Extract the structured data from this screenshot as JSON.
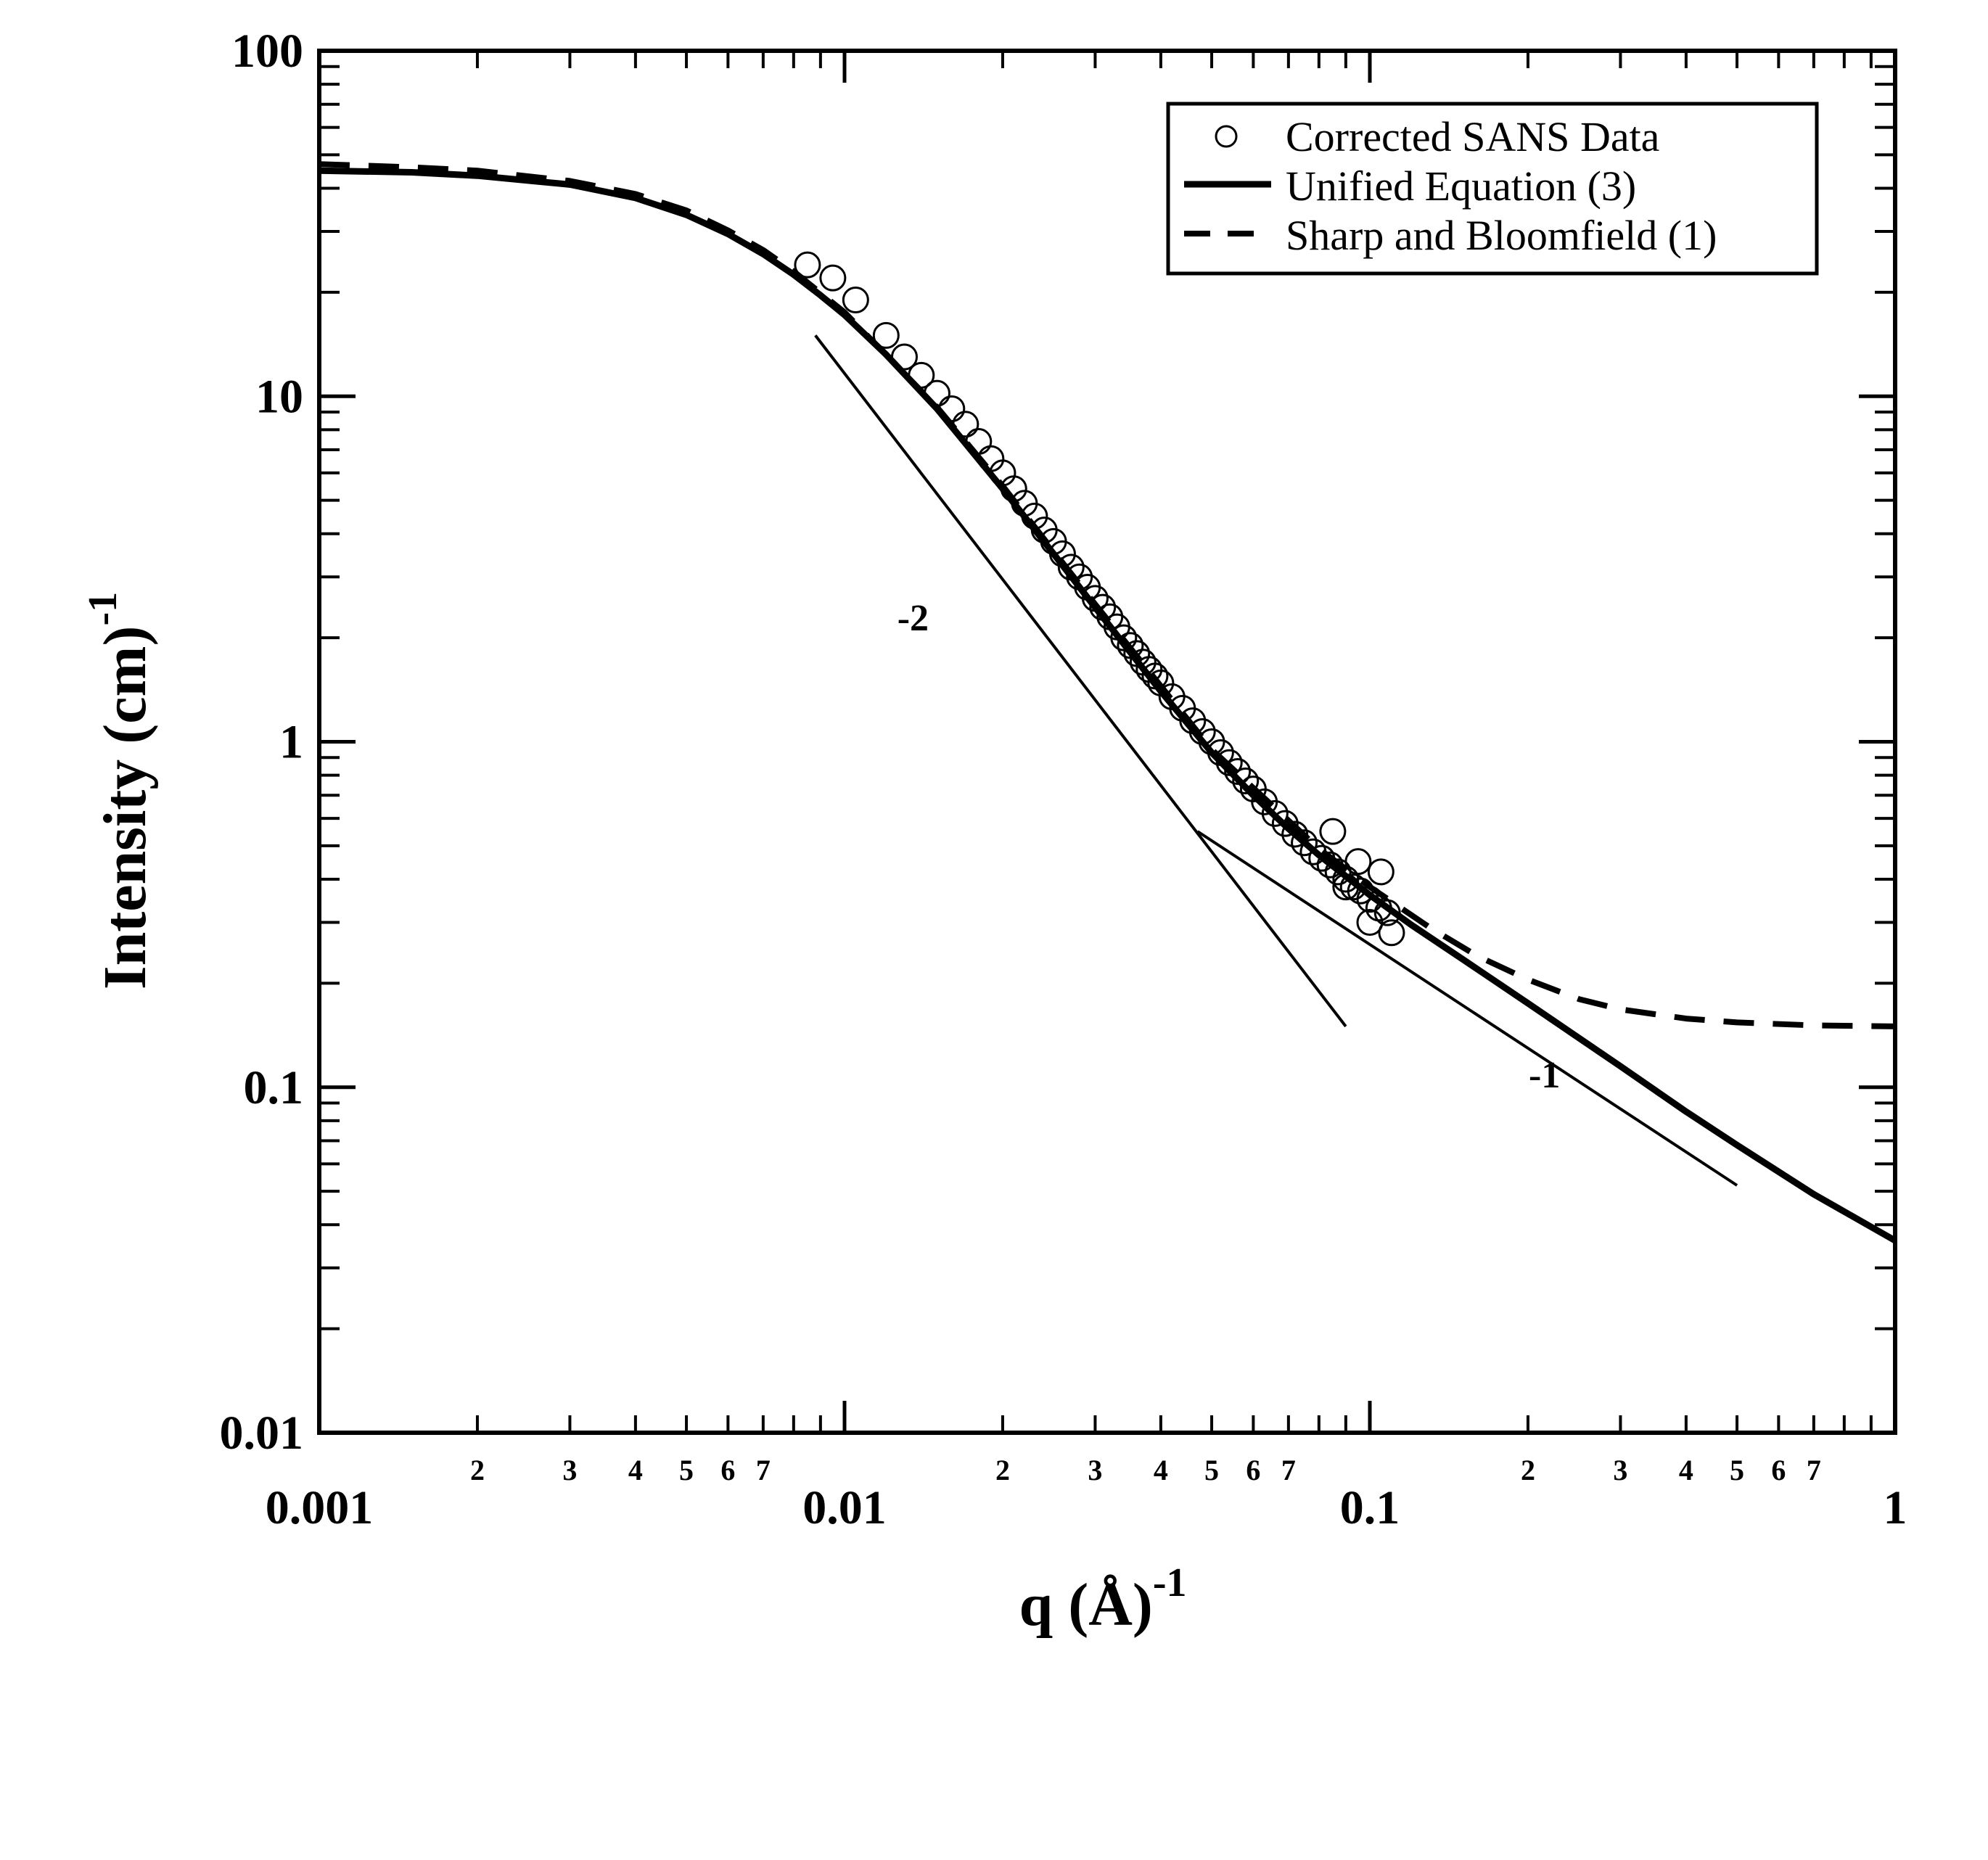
{
  "chart_data": {
    "type": "scatter",
    "title": "",
    "xlabel": "q (Å)",
    "xlabel_exponent": "-1",
    "ylabel": "Intensity (cm)",
    "ylabel_exponent": "-1",
    "xscale": "log",
    "yscale": "log",
    "xlim": [
      0.001,
      1
    ],
    "ylim": [
      0.01,
      100
    ],
    "x_major_ticks": [
      {
        "value": 0.001,
        "label": "0.001"
      },
      {
        "value": 0.01,
        "label": "0.01"
      },
      {
        "value": 0.1,
        "label": "0.1"
      },
      {
        "value": 1,
        "label": "1"
      }
    ],
    "y_major_ticks": [
      {
        "value": 0.01,
        "label": "0.01"
      },
      {
        "value": 0.1,
        "label": "0.1"
      },
      {
        "value": 1,
        "label": "1"
      },
      {
        "value": 10,
        "label": "10"
      },
      {
        "value": 100,
        "label": "100"
      }
    ],
    "x_minor_tick_labels": [
      "2",
      "3",
      "4",
      "5",
      "6",
      "7"
    ],
    "grid": false,
    "legend": {
      "position": "top-right",
      "entries": [
        {
          "label": "Corrected SANS Data",
          "style": "circle"
        },
        {
          "label": "Unified Equation (3)",
          "style": "solid"
        },
        {
          "label": "Sharp and Bloomfield (1)",
          "style": "dashed"
        }
      ]
    },
    "series": [
      {
        "name": "Corrected SANS Data",
        "style": "circle",
        "x": [
          0.0085,
          0.0095,
          0.0105,
          0.012,
          0.013,
          0.014,
          0.015,
          0.016,
          0.017,
          0.018,
          0.019,
          0.02,
          0.021,
          0.022,
          0.023,
          0.024,
          0.025,
          0.026,
          0.027,
          0.028,
          0.029,
          0.03,
          0.031,
          0.032,
          0.033,
          0.034,
          0.035,
          0.036,
          0.037,
          0.038,
          0.039,
          0.04,
          0.042,
          0.044,
          0.046,
          0.048,
          0.05,
          0.052,
          0.054,
          0.056,
          0.058,
          0.06,
          0.063,
          0.066,
          0.069,
          0.072,
          0.075,
          0.078,
          0.081,
          0.084,
          0.087,
          0.09,
          0.093,
          0.096,
          0.1,
          0.104,
          0.108,
          0.085,
          0.09,
          0.095,
          0.1,
          0.105,
          0.11
        ],
        "y": [
          24,
          22,
          19,
          15,
          13,
          11.5,
          10.2,
          9.2,
          8.3,
          7.4,
          6.6,
          6.0,
          5.4,
          4.9,
          4.5,
          4.1,
          3.8,
          3.5,
          3.2,
          3.0,
          2.8,
          2.6,
          2.45,
          2.3,
          2.15,
          2.0,
          1.9,
          1.8,
          1.7,
          1.62,
          1.55,
          1.48,
          1.35,
          1.25,
          1.15,
          1.07,
          1.0,
          0.93,
          0.87,
          0.82,
          0.77,
          0.73,
          0.67,
          0.62,
          0.58,
          0.54,
          0.51,
          0.48,
          0.46,
          0.44,
          0.42,
          0.4,
          0.38,
          0.37,
          0.35,
          0.33,
          0.32,
          0.55,
          0.38,
          0.45,
          0.3,
          0.42,
          0.28
        ]
      },
      {
        "name": "Unified Equation (3)",
        "style": "solid",
        "x": [
          0.001,
          0.0015,
          0.002,
          0.003,
          0.004,
          0.005,
          0.006,
          0.007,
          0.008,
          0.009,
          0.01,
          0.012,
          0.015,
          0.02,
          0.025,
          0.03,
          0.04,
          0.05,
          0.06,
          0.07,
          0.08,
          0.1,
          0.12,
          0.15,
          0.2,
          0.3,
          0.4,
          0.5,
          0.7,
          1.0
        ],
        "y": [
          45,
          44.5,
          43.5,
          41,
          37.5,
          33.5,
          29.5,
          25.8,
          22.5,
          19.6,
          17.2,
          13.2,
          9.2,
          5.4,
          3.5,
          2.45,
          1.4,
          0.93,
          0.7,
          0.56,
          0.47,
          0.36,
          0.295,
          0.235,
          0.175,
          0.115,
          0.085,
          0.068,
          0.049,
          0.036
        ]
      },
      {
        "name": "Sharp and Bloomfield (1)",
        "style": "dashed",
        "x": [
          0.001,
          0.0015,
          0.002,
          0.003,
          0.004,
          0.005,
          0.006,
          0.007,
          0.008,
          0.01,
          0.015,
          0.02,
          0.03,
          0.05,
          0.08,
          0.1,
          0.13,
          0.16,
          0.2,
          0.25,
          0.3,
          0.4,
          0.5,
          0.7,
          1.0
        ],
        "y": [
          47,
          46,
          45,
          42,
          38.5,
          34.5,
          30.2,
          26.5,
          23,
          17.5,
          9.3,
          5.5,
          2.5,
          0.95,
          0.49,
          0.38,
          0.29,
          0.24,
          0.205,
          0.18,
          0.168,
          0.158,
          0.154,
          0.151,
          0.15
        ]
      }
    ],
    "annotations": [
      {
        "text": "-2",
        "kind": "slope-line",
        "x": [
          0.0088,
          0.09
        ],
        "y": [
          15,
          0.15
        ],
        "label_at": [
          0.0135,
          2.1
        ]
      },
      {
        "text": "-1",
        "kind": "slope-line",
        "x": [
          0.047,
          0.5
        ],
        "y": [
          0.55,
          0.052
        ],
        "label_at": [
          0.215,
          0.1
        ]
      }
    ]
  }
}
